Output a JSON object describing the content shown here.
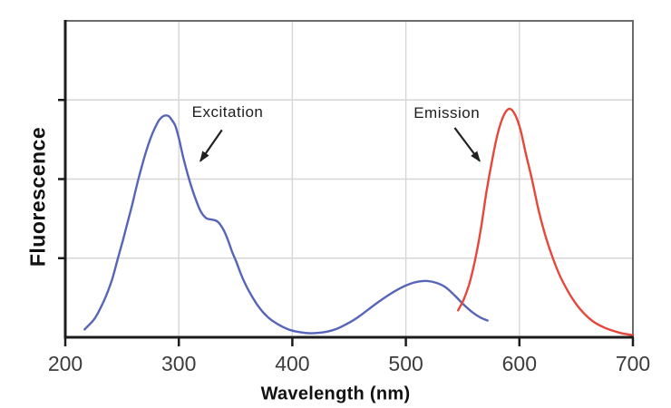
{
  "chart_data": {
    "type": "line",
    "title": "",
    "xlabel": "Wavelength (nm)",
    "ylabel": "Fluorescence",
    "xlim": [
      200,
      700
    ],
    "ylim": [
      0,
      1
    ],
    "x_ticks": [
      "200",
      "300",
      "400",
      "500",
      "600",
      "700"
    ],
    "x_tick_values": [
      200,
      300,
      400,
      500,
      600,
      700
    ],
    "x_gridlines": [
      300,
      400,
      500,
      600
    ],
    "y_gridlines": [
      0.25,
      0.5,
      0.75
    ],
    "grid": true,
    "legend_position": "none",
    "colors": {
      "excitation_line": "#5765b8",
      "emission_line": "#e5473b",
      "axis": "#1c1c1c",
      "frame": "#6a6a6a",
      "gridline": "#d6d6d6",
      "arrow": "#222222"
    },
    "series": [
      {
        "name": "Excitation",
        "color": "#5765b8",
        "x": [
          217,
          226,
          234,
          241,
          246,
          251,
          255,
          259,
          263,
          267,
          271,
          275,
          279,
          283,
          287,
          291,
          294,
          297,
          300,
          304,
          309,
          314,
          319,
          324,
          329,
          334,
          339,
          343,
          347,
          351,
          355,
          359,
          364,
          369,
          374,
          379,
          385,
          392,
          399,
          407,
          415,
          423,
          431,
          440,
          449,
          458,
          467,
          476,
          485,
          494,
          503,
          511,
          519,
          527,
          535,
          543,
          551,
          559,
          566,
          572
        ],
        "y": [
          0.025,
          0.06,
          0.115,
          0.18,
          0.245,
          0.31,
          0.365,
          0.42,
          0.48,
          0.535,
          0.585,
          0.628,
          0.662,
          0.688,
          0.7,
          0.699,
          0.686,
          0.668,
          0.63,
          0.567,
          0.5,
          0.445,
          0.4,
          0.377,
          0.372,
          0.366,
          0.342,
          0.31,
          0.27,
          0.235,
          0.197,
          0.165,
          0.132,
          0.103,
          0.08,
          0.062,
          0.046,
          0.032,
          0.022,
          0.016,
          0.013,
          0.014,
          0.018,
          0.028,
          0.044,
          0.064,
          0.088,
          0.112,
          0.134,
          0.153,
          0.168,
          0.176,
          0.178,
          0.172,
          0.158,
          0.132,
          0.103,
          0.078,
          0.062,
          0.053
        ]
      },
      {
        "name": "Emission",
        "color": "#e5473b",
        "x": [
          546,
          551,
          556,
          561,
          566,
          571,
          576,
          581,
          586,
          591,
          596,
          601,
          606,
          611,
          617,
          623,
          629,
          635,
          642,
          649,
          657,
          665,
          674,
          683,
          691,
          700
        ],
        "y": [
          0.085,
          0.12,
          0.17,
          0.245,
          0.34,
          0.46,
          0.56,
          0.645,
          0.7,
          0.722,
          0.705,
          0.655,
          0.575,
          0.5,
          0.4,
          0.32,
          0.255,
          0.2,
          0.15,
          0.11,
          0.075,
          0.05,
          0.032,
          0.02,
          0.012,
          0.007
        ]
      }
    ],
    "annotations": [
      {
        "text": "Excitation",
        "label_x": 343,
        "label_y": 0.71,
        "arrow": {
          "x1": 338,
          "y1": 0.655,
          "x2": 319,
          "y2": 0.557
        }
      },
      {
        "text": "Emission",
        "label_x": 536,
        "label_y": 0.708,
        "arrow": {
          "x1": 543,
          "y1": 0.662,
          "x2": 565,
          "y2": 0.557
        }
      }
    ]
  }
}
